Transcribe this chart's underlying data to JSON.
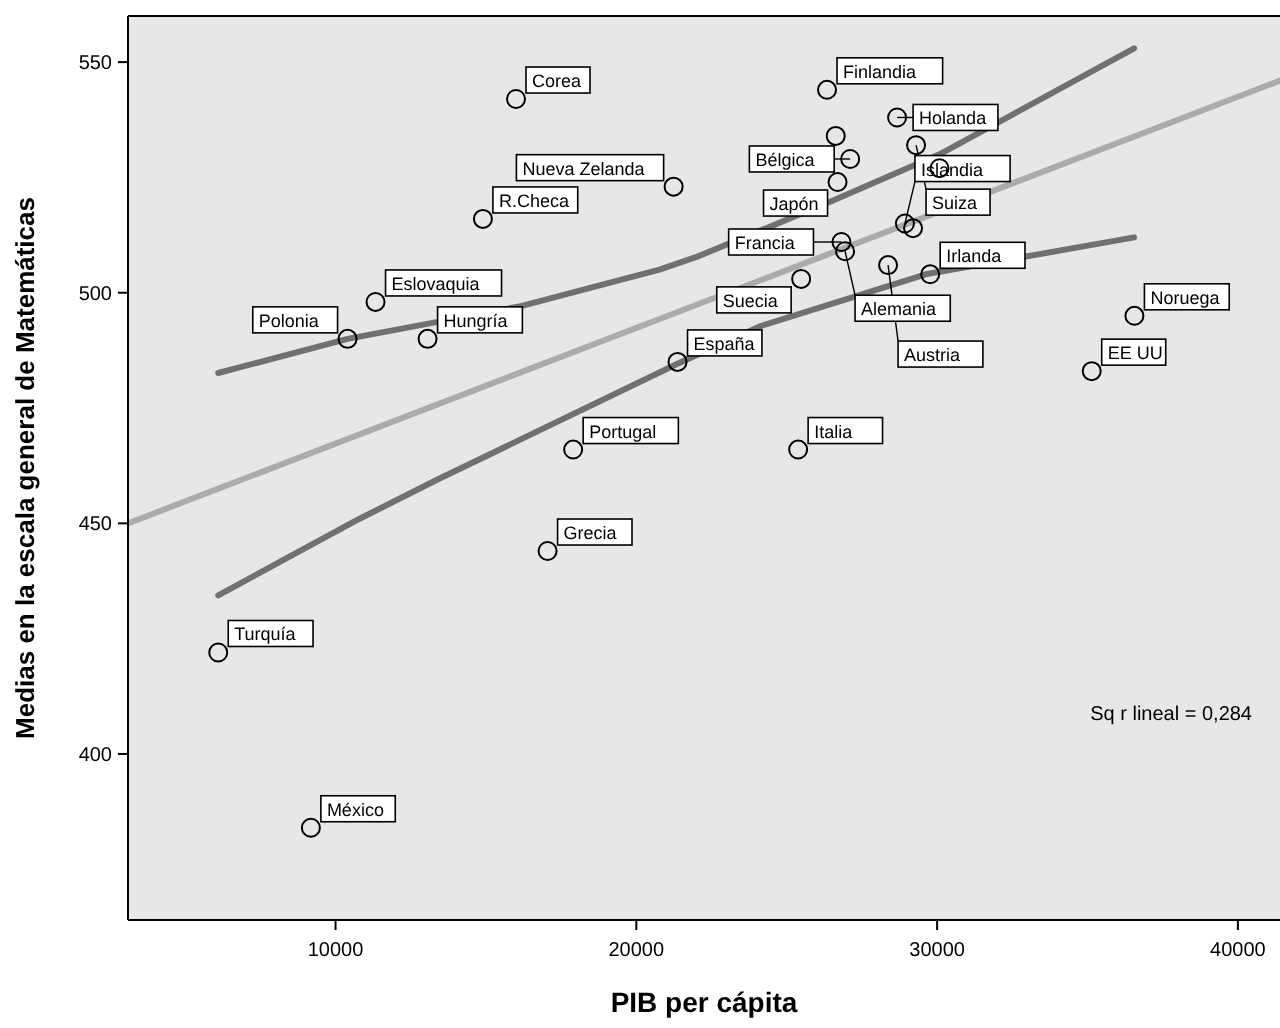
{
  "chart_data": {
    "type": "scatter",
    "xlabel": "PIB per cápita",
    "ylabel": "Medias en la escala general de Matemáticas",
    "xlim": [
      3100,
      41400
    ],
    "ylim": [
      364,
      560
    ],
    "xticks": [
      10000,
      20000,
      30000,
      40000
    ],
    "yticks": [
      400,
      450,
      500,
      550
    ],
    "grid": false,
    "series": [
      {
        "color": "#000000",
        "marker": "circle",
        "x": [
          16000,
          14900,
          21240,
          11330,
          10400,
          13060,
          17900,
          21370,
          26340,
          28670,
          26630,
          29300,
          27110,
          26690,
          30080,
          28930,
          29200,
          26820,
          26940,
          25480,
          28370,
          29770,
          36560,
          35140,
          25380,
          17050,
          6100,
          9180
        ],
        "values": [
          542,
          516,
          523,
          498,
          490,
          490,
          466,
          485,
          544,
          538,
          534,
          532,
          529,
          524,
          527,
          515,
          514,
          511,
          509,
          503,
          506,
          504,
          495,
          483,
          466,
          444,
          422,
          384
        ]
      },
      {
        "type": "line",
        "color": "#ababab",
        "marker": "none",
        "line_style": "solid",
        "x": [
          3100,
          41400
        ],
        "values": [
          450,
          546
        ]
      },
      {
        "type": "line",
        "color": "#707070",
        "marker": "none",
        "line_style": "solid",
        "x": [
          6100,
          10400,
          16100,
          20770,
          22100,
          26540,
          30080,
          36550
        ],
        "values": [
          482.6,
          490,
          497,
          505,
          508,
          520,
          530,
          553
        ]
      },
      {
        "type": "line",
        "color": "#707070",
        "marker": "none",
        "line_style": "solid",
        "x": [
          6100,
          10800,
          13390,
          21370,
          24100,
          29620,
          36550
        ],
        "values": [
          434.4,
          451,
          459.5,
          484.6,
          492.7,
          504,
          512
        ]
      }
    ],
    "annotations": [
      {
        "text": "Corea",
        "x": 16000,
        "y": 542
      },
      {
        "text": "R.Checa",
        "x": 14900,
        "y": 516
      },
      {
        "text": "Nueva Zelanda",
        "x": 21240,
        "y": 523
      },
      {
        "text": "Eslovaquia",
        "x": 11330,
        "y": 498
      },
      {
        "text": "Polonia",
        "x": 10400,
        "y": 490
      },
      {
        "text": "Hungría",
        "x": 13060,
        "y": 490
      },
      {
        "text": "Portugal",
        "x": 17900,
        "y": 466
      },
      {
        "text": "España",
        "x": 21370,
        "y": 485
      },
      {
        "text": "Finlandia",
        "x": 26340,
        "y": 544
      },
      {
        "text": "Holanda",
        "x": 28670,
        "y": 538
      },
      {
        "text": "Suiza",
        "x": 29300,
        "y": 532
      },
      {
        "text": "Bélgica",
        "x": 27110,
        "y": 529
      },
      {
        "text": "Japón",
        "x": 26690,
        "y": 524
      },
      {
        "text": "Islandia",
        "x": 28930,
        "y": 515
      },
      {
        "text": "Francia",
        "x": 26820,
        "y": 511
      },
      {
        "text": "Alemania",
        "x": 26940,
        "y": 509
      },
      {
        "text": "Suecia",
        "x": 25480,
        "y": 503
      },
      {
        "text": "Austria",
        "x": 28370,
        "y": 506
      },
      {
        "text": "Irlanda",
        "x": 29770,
        "y": 504
      },
      {
        "text": "Noruega",
        "x": 36560,
        "y": 495
      },
      {
        "text": "EE UU",
        "x": 35140,
        "y": 483
      },
      {
        "text": "Italia",
        "x": 25380,
        "y": 466
      },
      {
        "text": "Grecia",
        "x": 17050,
        "y": 444
      },
      {
        "text": "Turquía",
        "x": 6100,
        "y": 422
      },
      {
        "text": "México",
        "x": 9180,
        "y": 384
      },
      "Sq r lineal = 0,284"
    ]
  }
}
